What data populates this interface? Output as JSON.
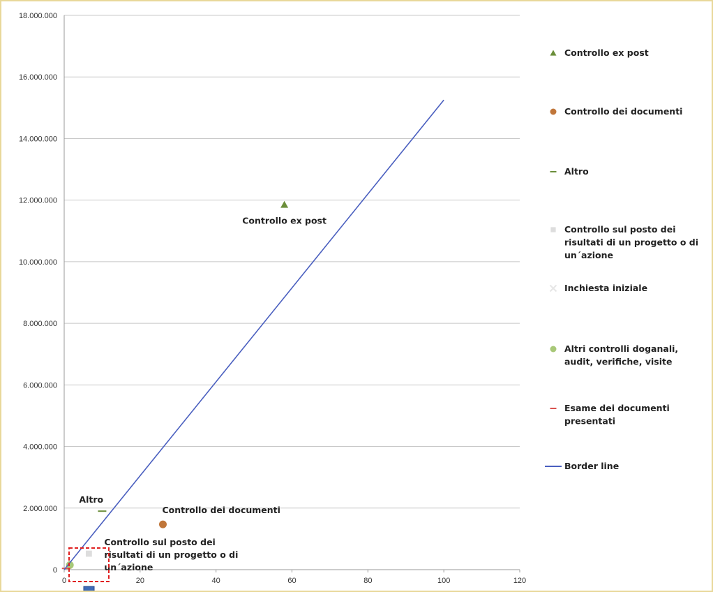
{
  "chart_data": {
    "type": "scatter",
    "title": "",
    "xlabel": "",
    "ylabel": "",
    "xlim": [
      0,
      120
    ],
    "ylim": [
      0,
      18000000
    ],
    "x_ticks": [
      "0",
      "20",
      "40",
      "60",
      "80",
      "100",
      "120"
    ],
    "y_ticks": [
      "0",
      "2.000.000",
      "4.000.000",
      "6.000.000",
      "8.000.000",
      "10.000.000",
      "12.000.000",
      "14.000.000",
      "16.000.000",
      "18.000.000"
    ],
    "grid": "horizontal",
    "legend_position": "right",
    "series": [
      {
        "name": "Controllo ex post",
        "marker": "triangle",
        "color": "#6b8e3a",
        "points": [
          {
            "x": 58,
            "y": 11850000,
            "label": "Controllo ex post"
          }
        ]
      },
      {
        "name": "Controllo dei documenti",
        "marker": "circle",
        "color": "#c0763a",
        "points": [
          {
            "x": 26,
            "y": 1470000,
            "label": "Controllo dei documenti"
          }
        ]
      },
      {
        "name": "Altro",
        "marker": "dash",
        "color": "#6b8e3a",
        "points": [
          {
            "x": 10,
            "y": 1900000,
            "label": "Altro"
          }
        ]
      },
      {
        "name": "Controllo sul posto dei risultati di un progetto o di un´azione",
        "marker": "square",
        "color": "#dddddd",
        "points": [
          {
            "x": 6.5,
            "y": 520000,
            "label": "Controllo sul posto dei risultati di un progetto o di un´azione"
          }
        ]
      },
      {
        "name": "Inchiesta iniziale",
        "marker": "x",
        "color": "#e6e6e6",
        "points": []
      },
      {
        "name": "Altri controlli doganali, audit, verifiche, visite",
        "marker": "circle",
        "color": "#a8c878",
        "points": [
          {
            "x": 1.5,
            "y": 150000
          }
        ]
      },
      {
        "name": "Esame dei documenti presentati",
        "marker": "dash",
        "color": "#d9534f",
        "points": [
          {
            "x": 0.5,
            "y": 40000
          }
        ]
      },
      {
        "name": "Border line",
        "type": "line",
        "color": "#4a5fbf",
        "points": [
          {
            "x": 0,
            "y": 0
          },
          {
            "x": 100,
            "y": 15250000
          }
        ]
      }
    ]
  },
  "legend": [
    {
      "lines": [
        "Controllo ex post"
      ],
      "marker": "triangle",
      "color": "#6b8e3a"
    },
    {
      "lines": [
        "Controllo dei documenti"
      ],
      "marker": "circle",
      "color": "#c0763a"
    },
    {
      "lines": [
        "Altro"
      ],
      "marker": "dash",
      "color": "#6b8e3a"
    },
    {
      "lines": [
        "Controllo sul posto dei",
        "risultati di un progetto o di",
        "un´azione"
      ],
      "marker": "square",
      "color": "#dddddd"
    },
    {
      "lines": [
        "Inchiesta iniziale"
      ],
      "marker": "x",
      "color": "#e6e6e6"
    },
    {
      "lines": [
        "Altri controlli doganali,",
        "audit, verifiche, visite"
      ],
      "marker": "circle",
      "color": "#a8c878"
    },
    {
      "lines": [
        "Esame dei documenti",
        "presentati"
      ],
      "marker": "dash",
      "color": "#d9534f"
    },
    {
      "lines": [
        "Border line"
      ],
      "marker": "line",
      "color": "#4a5fbf"
    }
  ],
  "point_labels": [
    {
      "series": 0,
      "lines": [
        "Controllo ex post"
      ]
    },
    {
      "series": 1,
      "lines": [
        "Controllo dei documenti"
      ]
    },
    {
      "series": 2,
      "lines": [
        "Altro"
      ]
    },
    {
      "series": 3,
      "lines": [
        "Controllo sul posto dei",
        "risultati di un progetto o di",
        "un´azione"
      ]
    }
  ],
  "highlight_color": "#e02020",
  "cursor_color": "#3f6bb8"
}
